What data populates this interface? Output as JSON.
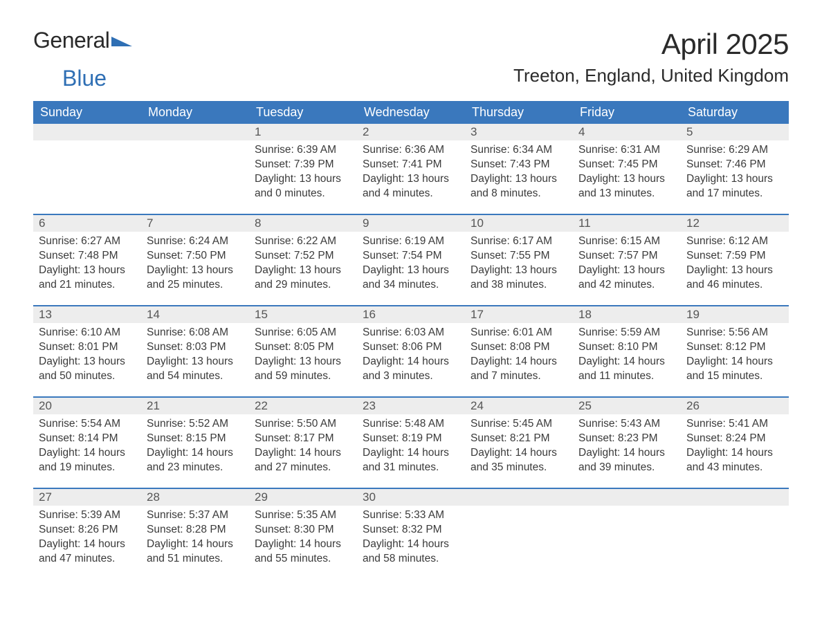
{
  "logo": {
    "text1": "General",
    "text2": "Blue"
  },
  "title": "April 2025",
  "location": "Treeton, England, United Kingdom",
  "colors": {
    "header_bg": "#3a78bd",
    "header_text": "#ffffff",
    "daynum_bg": "#ededed",
    "text": "#3a3a3a",
    "accent": "#2f6fb4"
  },
  "day_labels": [
    "Sunday",
    "Monday",
    "Tuesday",
    "Wednesday",
    "Thursday",
    "Friday",
    "Saturday"
  ],
  "weeks": [
    [
      {
        "n": "",
        "sunrise": "",
        "sunset": "",
        "daylight": ""
      },
      {
        "n": "",
        "sunrise": "",
        "sunset": "",
        "daylight": ""
      },
      {
        "n": "1",
        "sunrise": "Sunrise: 6:39 AM",
        "sunset": "Sunset: 7:39 PM",
        "daylight": "Daylight: 13 hours and 0 minutes."
      },
      {
        "n": "2",
        "sunrise": "Sunrise: 6:36 AM",
        "sunset": "Sunset: 7:41 PM",
        "daylight": "Daylight: 13 hours and 4 minutes."
      },
      {
        "n": "3",
        "sunrise": "Sunrise: 6:34 AM",
        "sunset": "Sunset: 7:43 PM",
        "daylight": "Daylight: 13 hours and 8 minutes."
      },
      {
        "n": "4",
        "sunrise": "Sunrise: 6:31 AM",
        "sunset": "Sunset: 7:45 PM",
        "daylight": "Daylight: 13 hours and 13 minutes."
      },
      {
        "n": "5",
        "sunrise": "Sunrise: 6:29 AM",
        "sunset": "Sunset: 7:46 PM",
        "daylight": "Daylight: 13 hours and 17 minutes."
      }
    ],
    [
      {
        "n": "6",
        "sunrise": "Sunrise: 6:27 AM",
        "sunset": "Sunset: 7:48 PM",
        "daylight": "Daylight: 13 hours and 21 minutes."
      },
      {
        "n": "7",
        "sunrise": "Sunrise: 6:24 AM",
        "sunset": "Sunset: 7:50 PM",
        "daylight": "Daylight: 13 hours and 25 minutes."
      },
      {
        "n": "8",
        "sunrise": "Sunrise: 6:22 AM",
        "sunset": "Sunset: 7:52 PM",
        "daylight": "Daylight: 13 hours and 29 minutes."
      },
      {
        "n": "9",
        "sunrise": "Sunrise: 6:19 AM",
        "sunset": "Sunset: 7:54 PM",
        "daylight": "Daylight: 13 hours and 34 minutes."
      },
      {
        "n": "10",
        "sunrise": "Sunrise: 6:17 AM",
        "sunset": "Sunset: 7:55 PM",
        "daylight": "Daylight: 13 hours and 38 minutes."
      },
      {
        "n": "11",
        "sunrise": "Sunrise: 6:15 AM",
        "sunset": "Sunset: 7:57 PM",
        "daylight": "Daylight: 13 hours and 42 minutes."
      },
      {
        "n": "12",
        "sunrise": "Sunrise: 6:12 AM",
        "sunset": "Sunset: 7:59 PM",
        "daylight": "Daylight: 13 hours and 46 minutes."
      }
    ],
    [
      {
        "n": "13",
        "sunrise": "Sunrise: 6:10 AM",
        "sunset": "Sunset: 8:01 PM",
        "daylight": "Daylight: 13 hours and 50 minutes."
      },
      {
        "n": "14",
        "sunrise": "Sunrise: 6:08 AM",
        "sunset": "Sunset: 8:03 PM",
        "daylight": "Daylight: 13 hours and 54 minutes."
      },
      {
        "n": "15",
        "sunrise": "Sunrise: 6:05 AM",
        "sunset": "Sunset: 8:05 PM",
        "daylight": "Daylight: 13 hours and 59 minutes."
      },
      {
        "n": "16",
        "sunrise": "Sunrise: 6:03 AM",
        "sunset": "Sunset: 8:06 PM",
        "daylight": "Daylight: 14 hours and 3 minutes."
      },
      {
        "n": "17",
        "sunrise": "Sunrise: 6:01 AM",
        "sunset": "Sunset: 8:08 PM",
        "daylight": "Daylight: 14 hours and 7 minutes."
      },
      {
        "n": "18",
        "sunrise": "Sunrise: 5:59 AM",
        "sunset": "Sunset: 8:10 PM",
        "daylight": "Daylight: 14 hours and 11 minutes."
      },
      {
        "n": "19",
        "sunrise": "Sunrise: 5:56 AM",
        "sunset": "Sunset: 8:12 PM",
        "daylight": "Daylight: 14 hours and 15 minutes."
      }
    ],
    [
      {
        "n": "20",
        "sunrise": "Sunrise: 5:54 AM",
        "sunset": "Sunset: 8:14 PM",
        "daylight": "Daylight: 14 hours and 19 minutes."
      },
      {
        "n": "21",
        "sunrise": "Sunrise: 5:52 AM",
        "sunset": "Sunset: 8:15 PM",
        "daylight": "Daylight: 14 hours and 23 minutes."
      },
      {
        "n": "22",
        "sunrise": "Sunrise: 5:50 AM",
        "sunset": "Sunset: 8:17 PM",
        "daylight": "Daylight: 14 hours and 27 minutes."
      },
      {
        "n": "23",
        "sunrise": "Sunrise: 5:48 AM",
        "sunset": "Sunset: 8:19 PM",
        "daylight": "Daylight: 14 hours and 31 minutes."
      },
      {
        "n": "24",
        "sunrise": "Sunrise: 5:45 AM",
        "sunset": "Sunset: 8:21 PM",
        "daylight": "Daylight: 14 hours and 35 minutes."
      },
      {
        "n": "25",
        "sunrise": "Sunrise: 5:43 AM",
        "sunset": "Sunset: 8:23 PM",
        "daylight": "Daylight: 14 hours and 39 minutes."
      },
      {
        "n": "26",
        "sunrise": "Sunrise: 5:41 AM",
        "sunset": "Sunset: 8:24 PM",
        "daylight": "Daylight: 14 hours and 43 minutes."
      }
    ],
    [
      {
        "n": "27",
        "sunrise": "Sunrise: 5:39 AM",
        "sunset": "Sunset: 8:26 PM",
        "daylight": "Daylight: 14 hours and 47 minutes."
      },
      {
        "n": "28",
        "sunrise": "Sunrise: 5:37 AM",
        "sunset": "Sunset: 8:28 PM",
        "daylight": "Daylight: 14 hours and 51 minutes."
      },
      {
        "n": "29",
        "sunrise": "Sunrise: 5:35 AM",
        "sunset": "Sunset: 8:30 PM",
        "daylight": "Daylight: 14 hours and 55 minutes."
      },
      {
        "n": "30",
        "sunrise": "Sunrise: 5:33 AM",
        "sunset": "Sunset: 8:32 PM",
        "daylight": "Daylight: 14 hours and 58 minutes."
      },
      {
        "n": "",
        "sunrise": "",
        "sunset": "",
        "daylight": ""
      },
      {
        "n": "",
        "sunrise": "",
        "sunset": "",
        "daylight": ""
      },
      {
        "n": "",
        "sunrise": "",
        "sunset": "",
        "daylight": ""
      }
    ]
  ]
}
